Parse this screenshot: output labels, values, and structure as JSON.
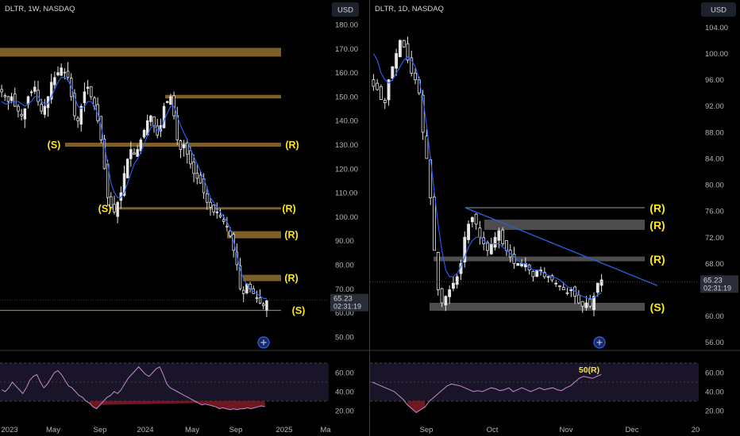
{
  "theme": {
    "background": "#000000",
    "axis_text": "#b2b5be",
    "candle": "#e6e6e6",
    "ma_line": "#2962ff",
    "level_gold": "#8a6a2c",
    "level_gold_thin": "#a0803a",
    "level_gray": "#7a7a7a",
    "zone_gray": "#5a5a5a",
    "sr_label": "#ffe81a",
    "trendline": "#2e5bd9",
    "rsi_line": "#c58bd1",
    "rsi_band": "#1a1428",
    "rsi_low_fill": "#8a1f2a",
    "price_tag_bg": "#2a2e39",
    "price_tag_text": "#d1d4dc"
  },
  "chart_data": [
    {
      "type": "candlestick",
      "panel": "left",
      "title": "DLTR, 1W, NASDAQ",
      "currency": "USD",
      "y_ticks": [
        180,
        170,
        160,
        150,
        140,
        130,
        120,
        110,
        100,
        90,
        80,
        70,
        60,
        50
      ],
      "y_tick_labels": [
        "180.00",
        "170.00",
        "160.00",
        "150.00",
        "140.00",
        "130.00",
        "120.00",
        "110.00",
        "100.00",
        "90.00",
        "80.00",
        "70.00",
        "60.00",
        "50.00"
      ],
      "ylim": [
        45,
        183
      ],
      "x_tick_labels": [
        "2023",
        "May",
        "Sep",
        "2024",
        "May",
        "Sep",
        "2025",
        "Ma"
      ],
      "last_price": "65.23",
      "countdown": "02:31:19",
      "close_series_approx": [
        152,
        150,
        148,
        150,
        146,
        144,
        142,
        145,
        150,
        152,
        154,
        148,
        144,
        146,
        150,
        156,
        158,
        160,
        162,
        160,
        158,
        150,
        142,
        140,
        146,
        152,
        154,
        150,
        146,
        140,
        132,
        120,
        108,
        104,
        102,
        106,
        110,
        118,
        124,
        128,
        126,
        128,
        132,
        136,
        140,
        142,
        138,
        134,
        138,
        146,
        148,
        150,
        142,
        132,
        128,
        130,
        126,
        122,
        118,
        116,
        114,
        110,
        106,
        104,
        102,
        102,
        100,
        98,
        96,
        92,
        86,
        80,
        70,
        68,
        72,
        70,
        68,
        66,
        64,
        63,
        65
      ],
      "ma_series_approx": [
        148,
        147,
        147,
        148,
        148,
        148,
        147,
        146,
        147,
        148,
        150,
        150,
        148,
        147,
        147,
        150,
        153,
        156,
        158,
        158,
        157,
        154,
        150,
        146,
        145,
        146,
        148,
        148,
        146,
        143,
        138,
        130,
        122,
        114,
        110,
        108,
        108,
        110,
        114,
        118,
        122,
        124,
        127,
        130,
        134,
        137,
        138,
        136,
        136,
        140,
        143,
        146,
        146,
        142,
        138,
        135,
        132,
        128,
        125,
        122,
        119,
        116,
        112,
        108,
        106,
        104,
        102,
        100,
        98,
        95,
        90,
        84,
        78,
        74,
        72,
        70,
        69,
        68,
        67,
        66,
        66
      ],
      "rsi_series_approx": [
        42,
        40,
        44,
        50,
        46,
        42,
        38,
        44,
        52,
        56,
        58,
        50,
        44,
        48,
        54,
        60,
        62,
        58,
        52,
        46,
        44,
        40,
        36,
        34,
        30,
        28,
        24,
        22,
        26,
        30,
        34,
        36,
        40,
        38,
        42,
        48,
        54,
        58,
        62,
        66,
        62,
        58,
        56,
        60,
        64,
        66,
        58,
        48,
        44,
        42,
        40,
        38,
        36,
        34,
        32,
        30,
        28,
        26,
        27,
        26,
        25,
        24,
        22,
        23,
        22,
        21,
        22,
        21,
        22,
        22,
        23,
        22,
        23,
        24,
        25,
        24
      ],
      "rsi_axis": [
        "60.00",
        "40.00",
        "20.00"
      ],
      "levels": [
        {
          "price": 168.5,
          "label": "",
          "kind": "zone",
          "color": "gold"
        },
        {
          "price": 150.0,
          "label": "",
          "kind": "line",
          "color": "gold"
        },
        {
          "price": 130.0,
          "label": "(R)",
          "left_label": "(S)",
          "kind": "line",
          "color": "gold"
        },
        {
          "price": 103.5,
          "label": "(R)",
          "left_label": "(S)",
          "kind": "line",
          "color": "gold"
        },
        {
          "price": 92.5,
          "label": "(R)",
          "kind": "zone",
          "color": "gold"
        },
        {
          "price": 74.5,
          "label": "(R)",
          "kind": "zone",
          "color": "gold"
        },
        {
          "price": 61.0,
          "label": "(S)",
          "kind": "line",
          "color": "gold"
        }
      ]
    },
    {
      "type": "candlestick",
      "panel": "right",
      "title": "DLTR, 1D, NASDAQ",
      "currency": "USD",
      "y_ticks": [
        104,
        100,
        96,
        92,
        88,
        84,
        80,
        76,
        72,
        68,
        64,
        60,
        56
      ],
      "y_tick_labels": [
        "104.00",
        "100.00",
        "96.00",
        "92.00",
        "88.00",
        "84.00",
        "80.00",
        "76.00",
        "72.00",
        "68.00",
        "64.00",
        "60.00",
        "56.00"
      ],
      "ylim": [
        55,
        105.5
      ],
      "x_tick_labels": [
        "Sep",
        "Oct",
        "Nov",
        "Dec",
        "20"
      ],
      "last_price": "65.23",
      "countdown": "02:31:19",
      "close_series_approx": [
        95,
        94.5,
        93,
        92.5,
        96,
        98,
        100,
        102,
        101,
        99,
        97,
        96,
        94,
        88,
        84,
        78,
        70,
        64,
        62,
        63,
        64,
        65,
        66,
        68,
        72,
        74,
        75,
        74,
        72,
        71,
        70,
        71,
        72,
        73,
        71,
        70,
        69,
        68,
        68,
        68,
        68,
        67,
        66,
        67,
        67,
        66,
        66,
        65.5,
        65,
        64.5,
        64,
        63.5,
        64,
        63,
        62,
        61.5,
        62,
        61.5,
        63,
        65,
        65.5
      ],
      "ma_series_approx": [
        100,
        99,
        97,
        96,
        95.5,
        96,
        97,
        98,
        99,
        99.5,
        99,
        98,
        96,
        93,
        89,
        84,
        79,
        74,
        70,
        67,
        66,
        66,
        66.5,
        67.5,
        69,
        70.5,
        71.5,
        72,
        72,
        71.5,
        71,
        71,
        71,
        71,
        70.5,
        70,
        69.5,
        69,
        68.5,
        68,
        68,
        67.5,
        67,
        67,
        66.8,
        66.5,
        66.2,
        66,
        65.8,
        65.5,
        65,
        64.5,
        64.2,
        63.8,
        63.3,
        63,
        62.8,
        62.6,
        62.8,
        63.2,
        63.6
      ],
      "rsi_series_approx": [
        50,
        48,
        46,
        44,
        42,
        40,
        36,
        32,
        26,
        22,
        18,
        21,
        24,
        30,
        34,
        38,
        42,
        46,
        48,
        47,
        46,
        44,
        42,
        40,
        41,
        40,
        42,
        44,
        43,
        41,
        42,
        44,
        40,
        42,
        44,
        42,
        40,
        42,
        44,
        42,
        43,
        44,
        42,
        41,
        44,
        46,
        50,
        54,
        56,
        55,
        54,
        56,
        58
      ],
      "rsi_axis": [
        "60.00",
        "40.00",
        "20.00"
      ],
      "rsi_annotation": "50(R)",
      "trendline": {
        "from": {
          "price": 76.5
        },
        "to": {
          "price": 64.5
        }
      },
      "levels": [
        {
          "price": 76.5,
          "label": "(R)",
          "kind": "line",
          "color": "gray"
        },
        {
          "price": 73.9,
          "label": "(R)",
          "kind": "zone",
          "color": "gray"
        },
        {
          "price": 68.7,
          "label": "(R)",
          "kind": "zone",
          "color": "gray"
        },
        {
          "price": 61.4,
          "label": "(S)",
          "kind": "zone",
          "color": "gray"
        }
      ]
    }
  ]
}
